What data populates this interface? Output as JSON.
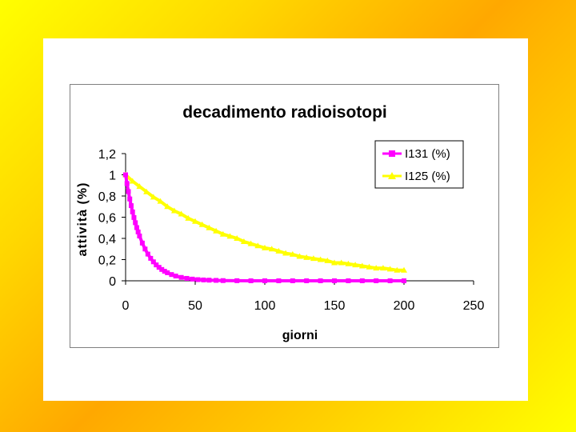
{
  "chart_data": {
    "type": "line",
    "title": "decadimento radioisotopi",
    "xlabel": "giorni",
    "ylabel": "attività (%)",
    "xlim": [
      0,
      250
    ],
    "ylim": [
      0,
      1.2
    ],
    "xticks": [
      "0",
      "50",
      "100",
      "150",
      "200",
      "250"
    ],
    "yticks": [
      "0",
      "0,2",
      "0,4",
      "0,6",
      "0,8",
      "1",
      "1,2"
    ],
    "grid": false,
    "legend": "top-right",
    "series": [
      {
        "name": "I131 (%)",
        "color": "#ff00ff",
        "marker": "square",
        "x": [
          0,
          1,
          2,
          3,
          4,
          5,
          6,
          7,
          8,
          9,
          10,
          12,
          14,
          16,
          18,
          20,
          22,
          24,
          26,
          28,
          30,
          33,
          36,
          40,
          44,
          48,
          52,
          56,
          60,
          65,
          70,
          80,
          90,
          100,
          110,
          120,
          130,
          140,
          150,
          160,
          170,
          180,
          190,
          200
        ],
        "values": [
          1.0,
          0.918,
          0.842,
          0.772,
          0.709,
          0.65,
          0.597,
          0.548,
          0.502,
          0.461,
          0.423,
          0.356,
          0.3,
          0.252,
          0.212,
          0.179,
          0.15,
          0.127,
          0.107,
          0.09,
          0.076,
          0.059,
          0.045,
          0.032,
          0.023,
          0.016,
          0.011,
          0.008,
          0.006,
          0.004,
          0.002,
          0.001,
          0.0,
          0.0,
          0.0,
          0.0,
          0.0,
          0.0,
          0.0,
          0.0,
          0.0,
          0.0,
          0.0,
          0.0
        ]
      },
      {
        "name": "I125 (%)",
        "color": "#ffff00",
        "marker": "triangle",
        "x": [
          0,
          5,
          10,
          15,
          20,
          25,
          30,
          35,
          40,
          45,
          50,
          55,
          60,
          65,
          70,
          75,
          80,
          85,
          90,
          95,
          100,
          105,
          110,
          115,
          120,
          125,
          130,
          135,
          140,
          145,
          150,
          155,
          160,
          165,
          170,
          175,
          180,
          185,
          190,
          195,
          200
        ],
        "values": [
          1.0,
          0.94,
          0.89,
          0.84,
          0.79,
          0.75,
          0.7,
          0.66,
          0.63,
          0.59,
          0.56,
          0.53,
          0.5,
          0.47,
          0.44,
          0.42,
          0.4,
          0.37,
          0.35,
          0.33,
          0.31,
          0.3,
          0.28,
          0.26,
          0.25,
          0.23,
          0.22,
          0.21,
          0.2,
          0.19,
          0.17,
          0.17,
          0.16,
          0.15,
          0.14,
          0.13,
          0.12,
          0.12,
          0.11,
          0.1,
          0.1
        ]
      }
    ]
  }
}
